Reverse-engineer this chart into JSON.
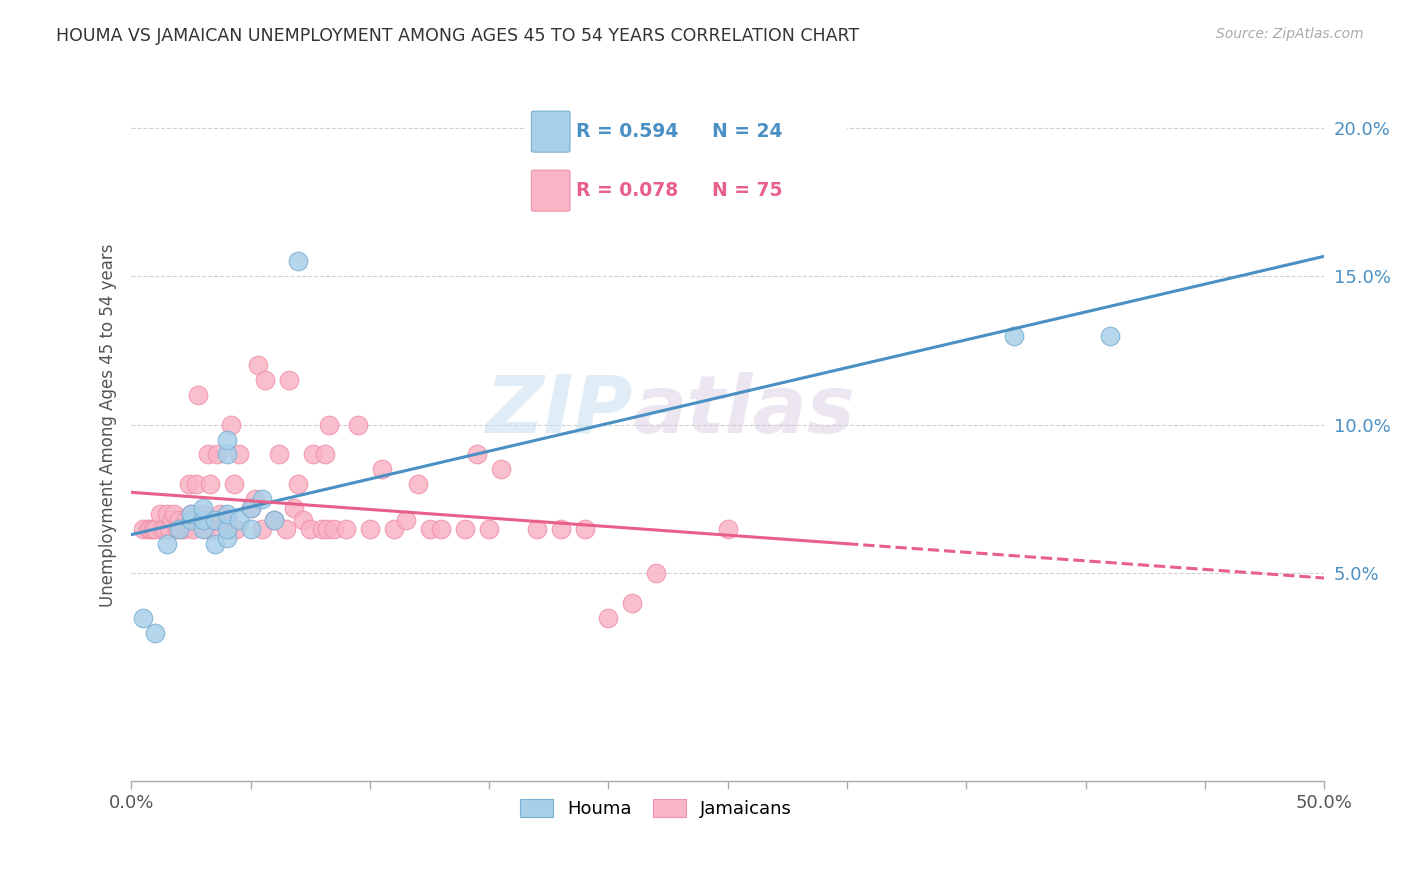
{
  "title": "HOUMA VS JAMAICAN UNEMPLOYMENT AMONG AGES 45 TO 54 YEARS CORRELATION CHART",
  "source": "Source: ZipAtlas.com",
  "ylabel": "Unemployment Among Ages 45 to 54 years",
  "xlim": [
    0,
    0.5
  ],
  "ylim": [
    -0.02,
    0.22
  ],
  "xticks": [
    0.0,
    0.05,
    0.1,
    0.15,
    0.2,
    0.25,
    0.3,
    0.35,
    0.4,
    0.45,
    0.5
  ],
  "yticks": [
    0.05,
    0.1,
    0.15,
    0.2
  ],
  "yticklabels": [
    "5.0%",
    "10.0%",
    "15.0%",
    "20.0%"
  ],
  "houma_R": 0.594,
  "houma_N": 24,
  "jamaican_R": 0.078,
  "jamaican_N": 75,
  "houma_color": "#a8cfe8",
  "jamaican_color": "#f9b4c5",
  "houma_edge_color": "#7ab0d4",
  "jamaican_edge_color": "#f090aa",
  "houma_line_color": "#4a90c4",
  "jamaican_line_color": "#e8608a",
  "ytick_color": "#4a90c4",
  "xtick_color": "#555555",
  "watermark": "ZIPatlas",
  "legend_label1": "Houma",
  "legend_label2": "Jamaicans",
  "houma_x": [
    0.005,
    0.01,
    0.015,
    0.02,
    0.025,
    0.025,
    0.03,
    0.03,
    0.03,
    0.035,
    0.035,
    0.04,
    0.04,
    0.04,
    0.04,
    0.04,
    0.045,
    0.05,
    0.05,
    0.055,
    0.06,
    0.07,
    0.37,
    0.41
  ],
  "houma_y": [
    0.035,
    0.03,
    0.06,
    0.065,
    0.068,
    0.07,
    0.065,
    0.068,
    0.072,
    0.06,
    0.068,
    0.062,
    0.065,
    0.07,
    0.09,
    0.095,
    0.068,
    0.065,
    0.072,
    0.075,
    0.068,
    0.155,
    0.13,
    0.13
  ],
  "jamaican_x": [
    0.005,
    0.007,
    0.008,
    0.009,
    0.01,
    0.012,
    0.013,
    0.014,
    0.015,
    0.016,
    0.017,
    0.018,
    0.019,
    0.02,
    0.021,
    0.022,
    0.023,
    0.024,
    0.025,
    0.026,
    0.027,
    0.028,
    0.03,
    0.031,
    0.032,
    0.033,
    0.034,
    0.035,
    0.036,
    0.037,
    0.04,
    0.041,
    0.042,
    0.043,
    0.044,
    0.045,
    0.05,
    0.052,
    0.053,
    0.055,
    0.056,
    0.06,
    0.062,
    0.065,
    0.066,
    0.068,
    0.07,
    0.072,
    0.075,
    0.076,
    0.08,
    0.081,
    0.082,
    0.083,
    0.085,
    0.09,
    0.095,
    0.1,
    0.105,
    0.11,
    0.115,
    0.12,
    0.125,
    0.13,
    0.14,
    0.145,
    0.15,
    0.155,
    0.17,
    0.18,
    0.19,
    0.2,
    0.21,
    0.22,
    0.25
  ],
  "jamaican_y": [
    0.065,
    0.065,
    0.065,
    0.065,
    0.065,
    0.07,
    0.065,
    0.065,
    0.07,
    0.065,
    0.068,
    0.07,
    0.065,
    0.068,
    0.065,
    0.065,
    0.068,
    0.08,
    0.07,
    0.065,
    0.08,
    0.11,
    0.07,
    0.065,
    0.09,
    0.08,
    0.065,
    0.068,
    0.09,
    0.07,
    0.068,
    0.065,
    0.1,
    0.08,
    0.065,
    0.09,
    0.072,
    0.075,
    0.12,
    0.065,
    0.115,
    0.068,
    0.09,
    0.065,
    0.115,
    0.072,
    0.08,
    0.068,
    0.065,
    0.09,
    0.065,
    0.09,
    0.065,
    0.1,
    0.065,
    0.065,
    0.1,
    0.065,
    0.085,
    0.065,
    0.068,
    0.08,
    0.065,
    0.065,
    0.065,
    0.09,
    0.065,
    0.085,
    0.065,
    0.065,
    0.065,
    0.035,
    0.04,
    0.05,
    0.065
  ]
}
